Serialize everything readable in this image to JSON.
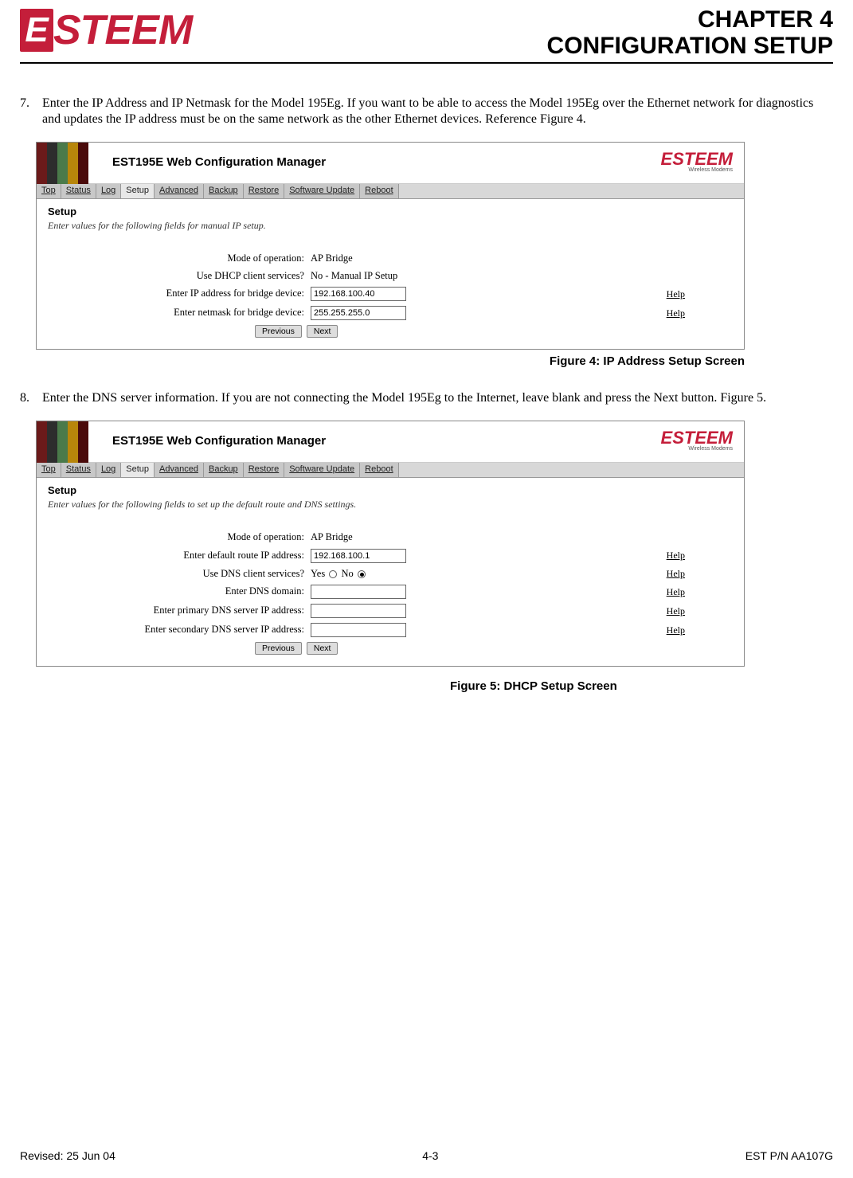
{
  "header": {
    "logo_letter": "E",
    "logo_text": "STEEM",
    "title_line1": "CHAPTER 4",
    "title_line2": "CONFIGURATION SETUP"
  },
  "items": [
    {
      "num": "7.",
      "text": "Enter the IP Address and IP Netmask for the Model 195Eg.  If you want to be able to access the Model 195Eg over the Ethernet network for diagnostics and updates the IP address must be on the same network as the other Ethernet devices.  Reference Figure 4."
    },
    {
      "num": "8.",
      "text": "Enter the DNS server information.  If you are not connecting the Model 195Eg to the Internet, leave blank and press the Next button.  Figure 5."
    }
  ],
  "screenshot_common": {
    "title": "EST195E Web Configuration Manager",
    "logo": "ESTEEM",
    "logo_sub": "Wireless Modems",
    "bar_colors": [
      "#6b1a1a",
      "#2d2d2d",
      "#4a7a4a",
      "#b8860b",
      "#4a0a0a"
    ],
    "tabs": [
      "Top",
      "Status",
      "Log",
      "Setup",
      "Advanced",
      "Backup",
      "Restore",
      "Software Update",
      "Reboot"
    ],
    "active_tab": "Setup",
    "section": "Setup",
    "prev_btn": "Previous",
    "next_btn": "Next",
    "help": "Help"
  },
  "fig4": {
    "desc": "Enter values for the following fields for manual IP setup.",
    "rows": [
      {
        "label": "Mode of operation:",
        "value": "AP Bridge",
        "type": "text",
        "help": false
      },
      {
        "label": "Use DHCP client services?",
        "value": "No - Manual IP Setup",
        "type": "text",
        "help": false
      },
      {
        "label": "Enter IP address for bridge device:",
        "value": "192.168.100.40",
        "type": "input",
        "help": true
      },
      {
        "label": "Enter netmask for bridge device:",
        "value": "255.255.255.0",
        "type": "input",
        "help": true
      }
    ],
    "caption": "Figure 4: IP Address Setup Screen"
  },
  "fig5": {
    "desc": "Enter values for the following fields to set up the default route and DNS settings.",
    "rows": [
      {
        "label": "Mode of operation:",
        "value": "AP Bridge",
        "type": "text",
        "help": false
      },
      {
        "label": "Enter default route IP address:",
        "value": "192.168.100.1",
        "type": "input",
        "help": true
      },
      {
        "label": "Use DNS client services?",
        "value": "yesno",
        "type": "radio",
        "help": true
      },
      {
        "label": "Enter DNS domain:",
        "value": "",
        "type": "input",
        "help": true
      },
      {
        "label": "Enter primary DNS server IP address:",
        "value": "",
        "type": "input",
        "help": true
      },
      {
        "label": "Enter secondary DNS server IP address:",
        "value": "",
        "type": "input",
        "help": true
      }
    ],
    "caption": "Figure 5: DHCP Setup Screen"
  },
  "radio": {
    "yes": "Yes",
    "no": "No"
  },
  "footer": {
    "left": "Revised: 25 Jun 04",
    "center": "4-3",
    "right": "EST P/N AA107G"
  }
}
